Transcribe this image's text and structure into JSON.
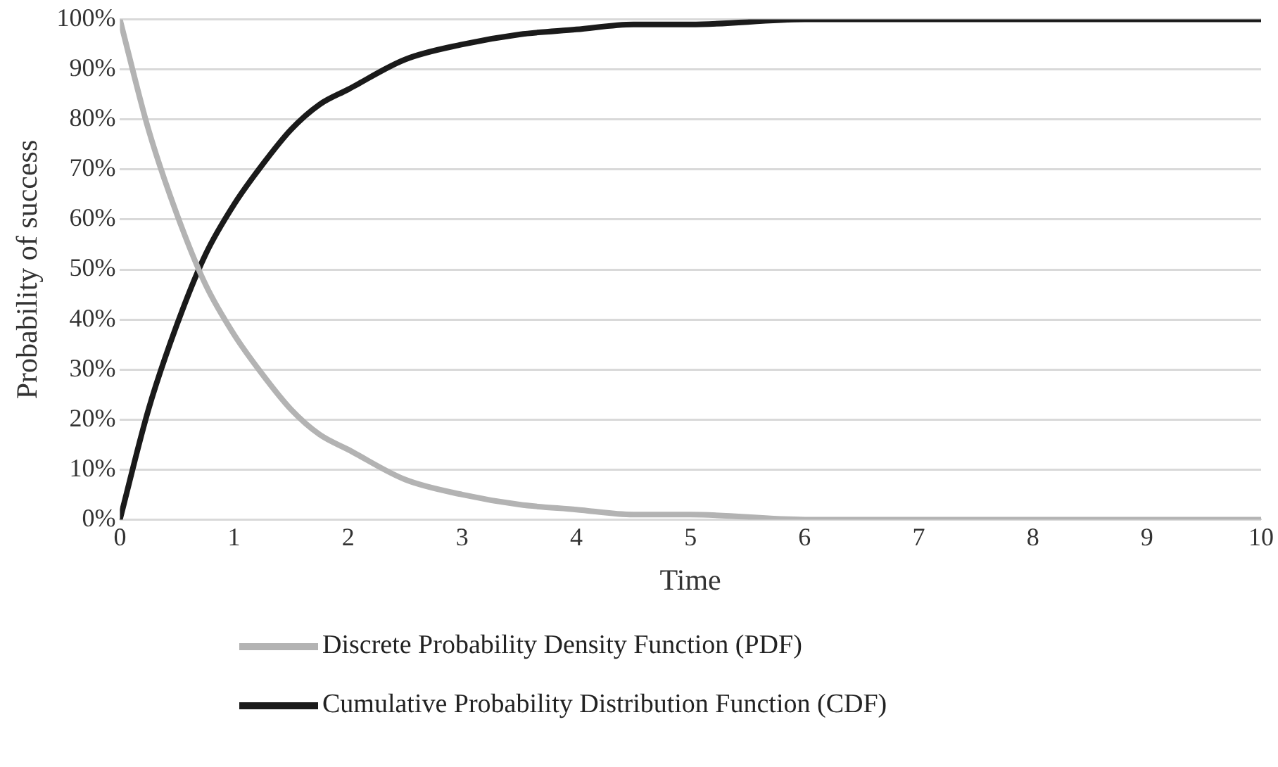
{
  "chart_data": {
    "type": "line",
    "xlabel": "Time",
    "ylabel": "Probability of success",
    "x": [
      0,
      0.25,
      0.5,
      0.75,
      1,
      1.25,
      1.5,
      1.75,
      2,
      2.5,
      3,
      3.5,
      4,
      4.5,
      5,
      6,
      7,
      8,
      9,
      10
    ],
    "series": [
      {
        "name": "Discrete Probability Density Function (PDF)",
        "color": "#b3b3b3",
        "values": [
          100,
          78,
          61,
          47,
          37,
          29,
          22,
          17,
          14,
          8,
          5,
          3,
          2,
          1,
          1,
          0,
          0,
          0,
          0,
          0
        ]
      },
      {
        "name": "Cumulative Probability Distribution Function (CDF)",
        "color": "#1a1a1a",
        "values": [
          0,
          22,
          39,
          53,
          63,
          71,
          78,
          83,
          86,
          92,
          95,
          97,
          98,
          99,
          99,
          100,
          100,
          100,
          100,
          100
        ]
      }
    ],
    "xlim": [
      0,
      10
    ],
    "xticks": [
      0,
      1,
      2,
      3,
      4,
      5,
      6,
      7,
      8,
      9,
      10
    ],
    "ylim": [
      0,
      100
    ],
    "yticks": [
      {
        "value": 0,
        "label": "0%"
      },
      {
        "value": 10,
        "label": "10%"
      },
      {
        "value": 20,
        "label": "20%"
      },
      {
        "value": 30,
        "label": "30%"
      },
      {
        "value": 40,
        "label": "40%"
      },
      {
        "value": 50,
        "label": "50%"
      },
      {
        "value": 60,
        "label": "60%"
      },
      {
        "value": 70,
        "label": "70%"
      },
      {
        "value": 80,
        "label": "80%"
      },
      {
        "value": 90,
        "label": "90%"
      },
      {
        "value": 100,
        "label": "100%"
      }
    ],
    "grid": "y",
    "legend": "bottom",
    "marker": "none",
    "line_style": "solid"
  }
}
